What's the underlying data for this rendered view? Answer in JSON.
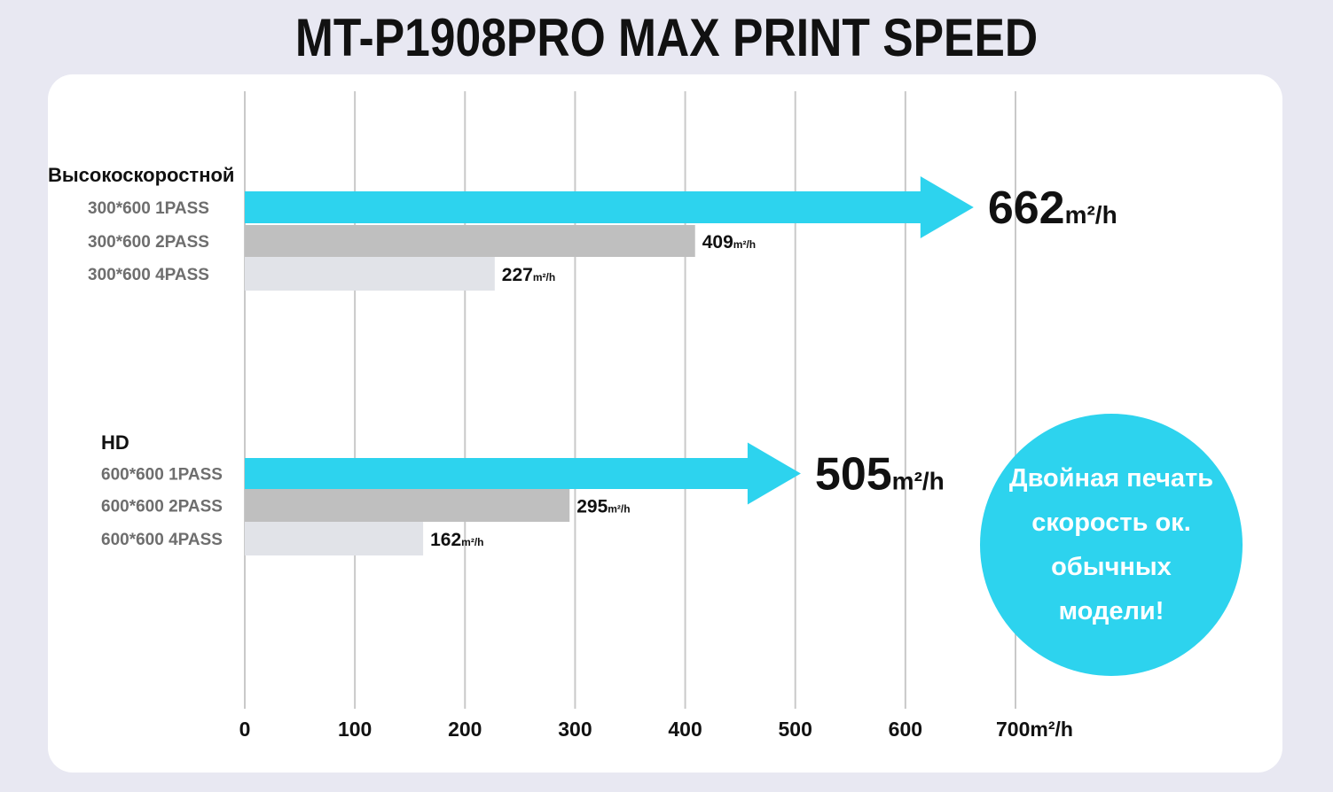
{
  "title": "MT-P1908PRO MAX PRINT SPEED",
  "callout": {
    "lines": [
      "Двойная печать",
      "скорость ок.",
      "обычных",
      "модели!"
    ]
  },
  "colors": {
    "accent": "#2dd3ee",
    "bar_2pass": "#bfbfbf",
    "bar_4pass": "#e1e3e8",
    "grid": "#c9c9c9",
    "background": "#e8e8f2"
  },
  "chart_data": {
    "type": "bar",
    "orientation": "horizontal",
    "title": "MT-P1908PRO MAX PRINT SPEED",
    "xlabel": "m²/h",
    "xlim": [
      0,
      700
    ],
    "grid": true,
    "x_ticks": [
      "0",
      "100",
      "200",
      "300",
      "400",
      "500",
      "600",
      "700m²/h"
    ],
    "unit": "m²/h",
    "groups": [
      {
        "name": "Высокоскоростной",
        "bars": [
          {
            "label": "300*600 1PASS",
            "value": 662,
            "style": "arrow"
          },
          {
            "label": "300*600 2PASS",
            "value": 409,
            "style": "bar"
          },
          {
            "label": "300*600 4PASS",
            "value": 227,
            "style": "bar"
          }
        ]
      },
      {
        "name": "HD",
        "bars": [
          {
            "label": "600*600 1PASS",
            "value": 505,
            "style": "arrow"
          },
          {
            "label": "600*600 2PASS",
            "value": 295,
            "style": "bar"
          },
          {
            "label": "600*600 4PASS",
            "value": 162,
            "style": "bar"
          }
        ]
      }
    ]
  }
}
